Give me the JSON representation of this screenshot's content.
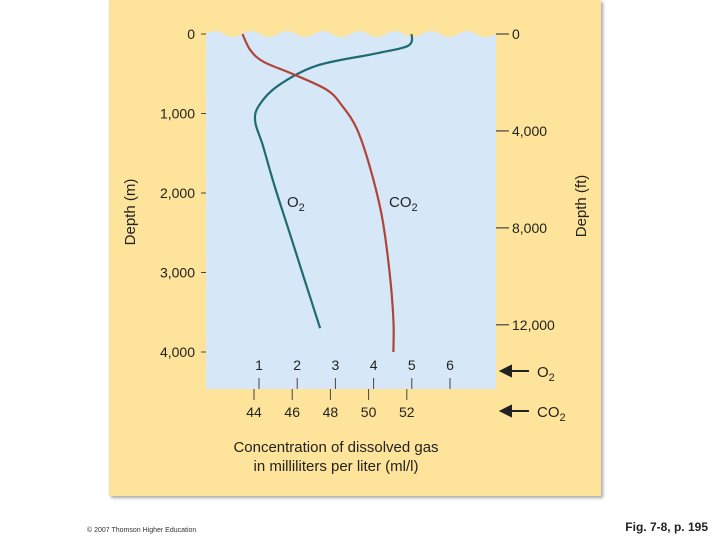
{
  "chart_data": {
    "type": "line",
    "left_axis": {
      "label": "Depth (m)",
      "ticks": [
        "0",
        "1,000",
        "2,000",
        "3,000",
        "4,000"
      ],
      "tick_values": [
        0,
        1000,
        2000,
        3000,
        4000
      ],
      "range": [
        0,
        4000
      ]
    },
    "right_axis": {
      "label": "Depth (ft)",
      "ticks": [
        "0",
        "4,000",
        "8,000",
        "12,000"
      ],
      "tick_values": [
        0,
        4000,
        8000,
        12000
      ]
    },
    "o2_axis": {
      "label": "O",
      "label_sub": "2",
      "ticks": [
        "1",
        "2",
        "3",
        "4",
        "5",
        "6"
      ],
      "tick_values": [
        1,
        2,
        3,
        4,
        5,
        6
      ]
    },
    "co2_axis": {
      "label": "CO",
      "label_sub": "2",
      "ticks": [
        "44",
        "46",
        "48",
        "50",
        "52"
      ],
      "tick_values": [
        44,
        46,
        48,
        50,
        52
      ]
    },
    "x_title_lines": [
      "Concentration of dissolved gas",
      "in milliliters per liter (ml/l)"
    ],
    "series": [
      {
        "name": "O",
        "name_sub": "2",
        "axis": "o2",
        "color": "#1f6b73",
        "points": [
          [
            5.0,
            0
          ],
          [
            4.9,
            150
          ],
          [
            4.0,
            250
          ],
          [
            2.5,
            400
          ],
          [
            1.5,
            650
          ],
          [
            1.0,
            900
          ],
          [
            0.9,
            1100
          ],
          [
            1.1,
            1400
          ],
          [
            1.4,
            1900
          ],
          [
            1.8,
            2500
          ],
          [
            2.2,
            3100
          ],
          [
            2.6,
            3700
          ]
        ]
      },
      {
        "name": "CO",
        "name_sub": "2",
        "axis": "co2",
        "color": "#b0443a",
        "points": [
          [
            43.4,
            0
          ],
          [
            43.8,
            200
          ],
          [
            44.5,
            350
          ],
          [
            46.0,
            500
          ],
          [
            47.8,
            700
          ],
          [
            48.6,
            900
          ],
          [
            49.4,
            1200
          ],
          [
            50.1,
            1700
          ],
          [
            50.7,
            2300
          ],
          [
            51.1,
            3000
          ],
          [
            51.3,
            3600
          ],
          [
            51.3,
            4000
          ]
        ]
      }
    ],
    "colors": {
      "panel": "#fde49a",
      "water": "#d6e8f7",
      "o2": "#1f6b73",
      "co2": "#b0443a"
    }
  },
  "footer": {
    "copyright": "© 2007 Thomson Higher Education",
    "figure_ref": "Fig. 7-8, p. 195"
  }
}
